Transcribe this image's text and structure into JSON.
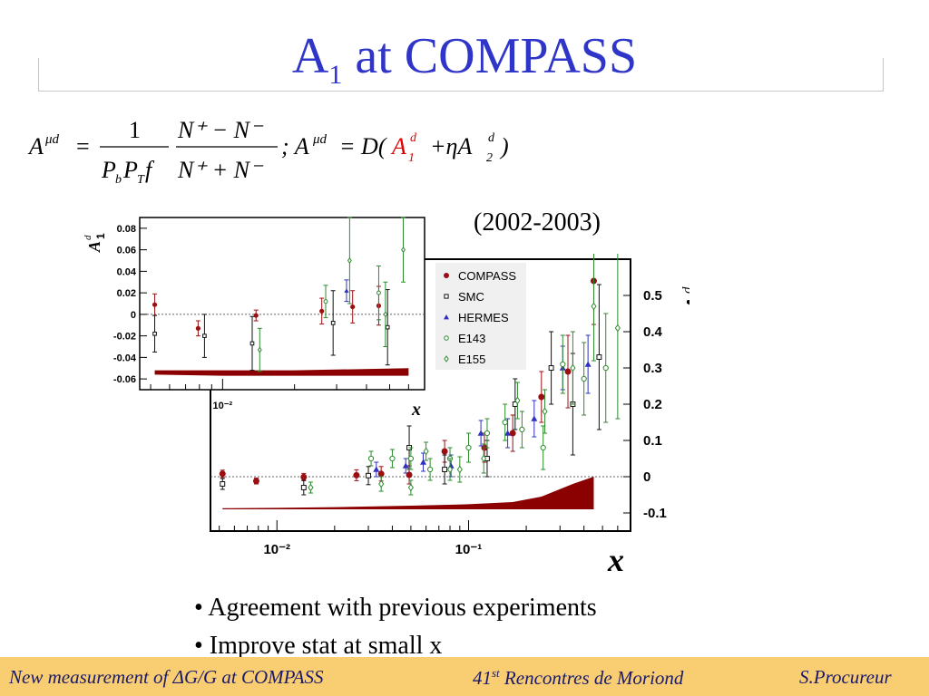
{
  "slide": {
    "title_main": "A",
    "title_sub": "1",
    "title_rest": " at COMPASS",
    "period": "(2002-2003)",
    "bullets": [
      "• Agreement with previous experiments",
      "• Improve stat at small x"
    ]
  },
  "formula": {
    "lhs": "A",
    "lhs_sup": "μd",
    "eq": "=",
    "frac1_num": "1",
    "frac1_den_a": "P",
    "frac1_den_a_sub": "b",
    "frac1_den_b": "P",
    "frac1_den_b_sub": "T",
    "frac1_den_c": " f",
    "frac2_num": "N⁺ − N⁻",
    "frac2_den": "N⁺ + N⁻",
    "sep": "; A",
    "rhs_sup": "μd",
    "rhs_eq": "= D(",
    "a1": "A",
    "a1_sub": "1",
    "a1_sup": "d",
    "plus": "+ηA",
    "a2_sub": "2",
    "a2_sup": "d",
    "close": ")"
  },
  "footer": {
    "left": "New measurement of ΔG/G at COMPASS",
    "middle_pre": "41",
    "middle_sup": "st",
    "middle_post": " Rencontres de Moriond",
    "right": "S.Procureur"
  },
  "colors": {
    "title": "#2f35c8",
    "compass": "#9a0f12",
    "smc": "#111111",
    "hermes": "#3030c0",
    "e143": "#2e8a2e",
    "e155": "#2e8a2e",
    "band": "#8b0000",
    "footer_bg": "#f9cd72",
    "footer_text": "#1a1a6a",
    "formula_red": "#e00000"
  },
  "chart_data": [
    {
      "type": "scatter",
      "title": "",
      "xlabel": "x",
      "ylabel": "A1d",
      "xscale": "log",
      "xlim": [
        0.0045,
        0.7
      ],
      "ylim": [
        -0.15,
        0.6
      ],
      "xticks": [
        0.01,
        0.1
      ],
      "xtick_labels": [
        "10⁻²",
        "10⁻¹"
      ],
      "yticks": [
        -0.1,
        0,
        0.1,
        0.2,
        0.3,
        0.4,
        0.5
      ],
      "ytick_labels": [
        "-0.1",
        "0",
        "0.1",
        "0.2",
        "0.3",
        "0.4",
        "0.5"
      ],
      "legend_position": "top-left",
      "grid": false,
      "series": [
        {
          "name": "COMPASS",
          "marker": "dot",
          "points": [
            [
              0.0052,
              0.008,
              0.01
            ],
            [
              0.0078,
              -0.012,
              0.008
            ],
            [
              0.0138,
              -0.001,
              0.01
            ],
            [
              0.026,
              0.004,
              0.015
            ],
            [
              0.035,
              0.008,
              0.02
            ],
            [
              0.049,
              0.005,
              0.025
            ],
            [
              0.075,
              0.07,
              0.03
            ],
            [
              0.121,
              0.08,
              0.04
            ],
            [
              0.17,
              0.12,
              0.05
            ],
            [
              0.24,
              0.22,
              0.07
            ],
            [
              0.33,
              0.29,
              0.1
            ],
            [
              0.45,
              0.54,
              0.12
            ]
          ]
        },
        {
          "name": "SMC",
          "marker": "square",
          "points": [
            [
              0.0052,
              -0.02,
              0.015
            ],
            [
              0.0138,
              -0.03,
              0.02
            ],
            [
              0.03,
              0.003,
              0.025
            ],
            [
              0.049,
              0.08,
              0.06
            ],
            [
              0.075,
              0.02,
              0.04
            ],
            [
              0.125,
              0.05,
              0.05
            ],
            [
              0.175,
              0.2,
              0.07
            ],
            [
              0.27,
              0.3,
              0.1
            ],
            [
              0.35,
              0.2,
              0.14
            ],
            [
              0.48,
              0.33,
              0.2
            ]
          ]
        },
        {
          "name": "HERMES",
          "marker": "triangle",
          "points": [
            [
              0.033,
              0.02,
              0.02
            ],
            [
              0.047,
              0.03,
              0.02
            ],
            [
              0.058,
              0.04,
              0.025
            ],
            [
              0.081,
              0.03,
              0.03
            ],
            [
              0.116,
              0.12,
              0.035
            ],
            [
              0.16,
              0.12,
              0.04
            ],
            [
              0.22,
              0.16,
              0.05
            ],
            [
              0.31,
              0.3,
              0.06
            ],
            [
              0.42,
              0.31,
              0.08
            ]
          ]
        },
        {
          "name": "E143",
          "marker": "circle",
          "points": [
            [
              0.031,
              0.05,
              0.02
            ],
            [
              0.04,
              0.05,
              0.025
            ],
            [
              0.05,
              0.05,
              0.03
            ],
            [
              0.063,
              0.02,
              0.03
            ],
            [
              0.08,
              0.05,
              0.03
            ],
            [
              0.1,
              0.08,
              0.04
            ],
            [
              0.125,
              0.12,
              0.04
            ],
            [
              0.155,
              0.15,
              0.05
            ],
            [
              0.19,
              0.13,
              0.05
            ],
            [
              0.245,
              0.08,
              0.06
            ],
            [
              0.31,
              0.31,
              0.08
            ],
            [
              0.4,
              0.27,
              0.1
            ],
            [
              0.52,
              0.3,
              0.15
            ]
          ]
        },
        {
          "name": "E155",
          "marker": "diamond",
          "points": [
            [
              0.015,
              -0.03,
              0.015
            ],
            [
              0.035,
              -0.02,
              0.02
            ],
            [
              0.05,
              -0.03,
              0.02
            ],
            [
              0.06,
              0.07,
              0.025
            ],
            [
              0.08,
              0.02,
              0.03
            ],
            [
              0.09,
              0.02,
              0.035
            ],
            [
              0.12,
              0.05,
              0.04
            ],
            [
              0.18,
              0.21,
              0.05
            ],
            [
              0.25,
              0.18,
              0.06
            ],
            [
              0.35,
              0.3,
              0.1
            ],
            [
              0.45,
              0.47,
              0.15
            ],
            [
              0.6,
              0.41,
              0.25
            ]
          ]
        }
      ],
      "syst_band": {
        "x": [
          0.0052,
          0.01,
          0.02,
          0.05,
          0.1,
          0.17,
          0.24,
          0.35,
          0.45
        ],
        "y_low": [
          -0.09,
          -0.09,
          -0.09,
          -0.09,
          -0.09,
          -0.09,
          -0.09,
          -0.09,
          -0.09
        ],
        "y_high": [
          -0.087,
          -0.086,
          -0.084,
          -0.08,
          -0.076,
          -0.07,
          -0.055,
          -0.02,
          0.0
        ]
      }
    },
    {
      "type": "scatter",
      "title": "",
      "xlabel": "x",
      "ylabel": "A1d",
      "xscale": "log",
      "xlim": [
        0.0045,
        0.07
      ],
      "ylim": [
        -0.07,
        0.09
      ],
      "xticks": [
        0.01
      ],
      "xtick_labels": [
        "10⁻²"
      ],
      "yticks": [
        -0.06,
        -0.04,
        -0.02,
        0,
        0.02,
        0.04,
        0.06,
        0.08
      ],
      "ytick_labels": [
        "-0.06",
        "-0.04",
        "-0.02",
        "0",
        "0.02",
        "0.04",
        "0.06",
        "0.08"
      ],
      "grid": false,
      "series": [
        {
          "name": "COMPASS",
          "marker": "dot",
          "points": [
            [
              0.0052,
              0.009,
              0.01
            ],
            [
              0.0079,
              -0.013,
              0.007
            ],
            [
              0.0138,
              -0.001,
              0.005
            ],
            [
              0.026,
              0.003,
              0.012
            ],
            [
              0.035,
              0.007,
              0.015
            ],
            [
              0.045,
              0.008,
              0.018
            ]
          ]
        },
        {
          "name": "SMC",
          "marker": "square",
          "points": [
            [
              0.0052,
              -0.018,
              0.017
            ],
            [
              0.0084,
              -0.02,
              0.02
            ],
            [
              0.0133,
              -0.027,
              0.025
            ],
            [
              0.029,
              -0.008,
              0.03
            ],
            [
              0.049,
              -0.012,
              0.035
            ]
          ]
        },
        {
          "name": "HERMES",
          "marker": "triangle",
          "points": [
            [
              0.033,
              0.022,
              0.01
            ]
          ]
        },
        {
          "name": "E143",
          "marker": "circle",
          "points": [
            [
              0.027,
              0.012,
              0.015
            ],
            [
              0.045,
              0.02,
              0.025
            ]
          ]
        },
        {
          "name": "E155",
          "marker": "diamond",
          "points": [
            [
              0.0143,
              -0.033,
              0.02
            ],
            [
              0.034,
              0.05,
              0.04
            ],
            [
              0.048,
              0.0,
              0.03
            ],
            [
              0.057,
              0.06,
              0.03
            ]
          ]
        }
      ],
      "syst_band": {
        "x": [
          0.0052,
          0.01,
          0.02,
          0.035,
          0.06
        ],
        "y_low": [
          -0.056,
          -0.057,
          -0.057,
          -0.057,
          -0.057
        ],
        "y_high": [
          -0.052,
          -0.052,
          -0.052,
          -0.051,
          -0.05
        ]
      }
    }
  ]
}
